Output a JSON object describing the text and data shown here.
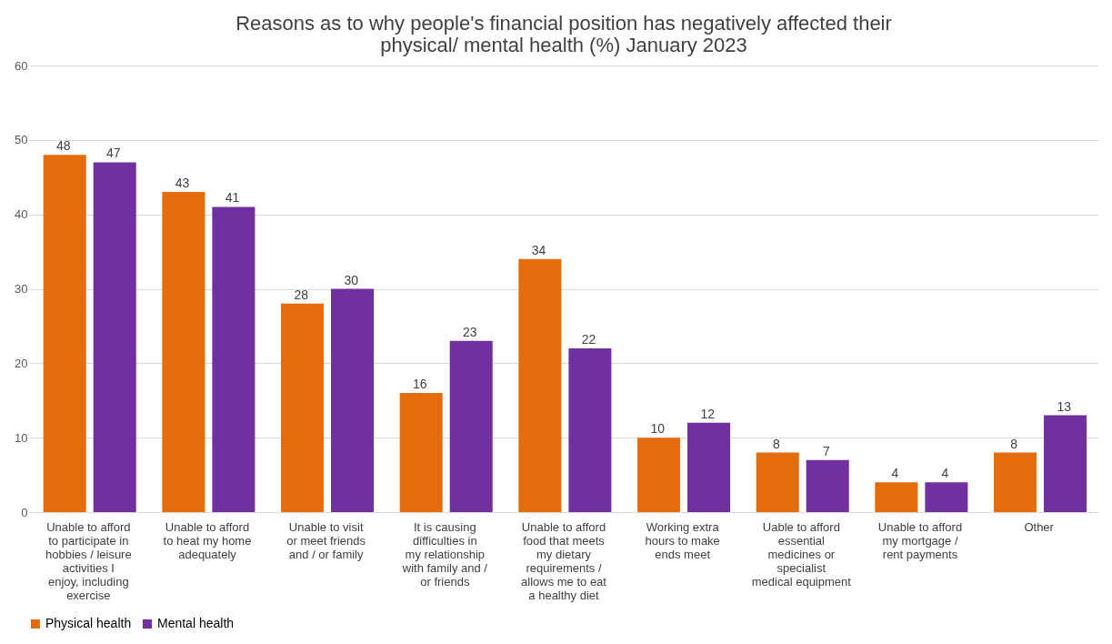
{
  "chart_data": {
    "type": "bar",
    "title": "Reasons as to why people's financial position has negatively affected their physical/ mental health (%) January 2023",
    "categories": [
      "Unable to afford to participate in hobbies / leisure activities I enjoy, including exercise",
      "Unable to afford to heat my home adequately",
      "Unable to visit or meet friends and / or family",
      "It is causing difficulties in my relationship with family and / or friends",
      "Unable to afford food that meets my dietary requirements / allows me to eat a healthy diet",
      "Working extra hours to make ends meet",
      "Uable to afford essential medicines or specialist medical equipment",
      "Unable to afford my mortgage / rent payments",
      "Other"
    ],
    "series": [
      {
        "name": "Physical health",
        "color": "#e46c0a",
        "values": [
          48,
          43,
          28,
          16,
          34,
          10,
          8,
          4,
          8
        ]
      },
      {
        "name": "Mental health",
        "color": "#7030a0",
        "values": [
          47,
          41,
          30,
          23,
          22,
          12,
          7,
          4,
          13
        ]
      }
    ],
    "ylim": [
      0,
      60
    ],
    "yticks": [
      0,
      10,
      20,
      30,
      40,
      50,
      60
    ],
    "grid": "y",
    "legend": "bottom",
    "data_labels": true
  }
}
